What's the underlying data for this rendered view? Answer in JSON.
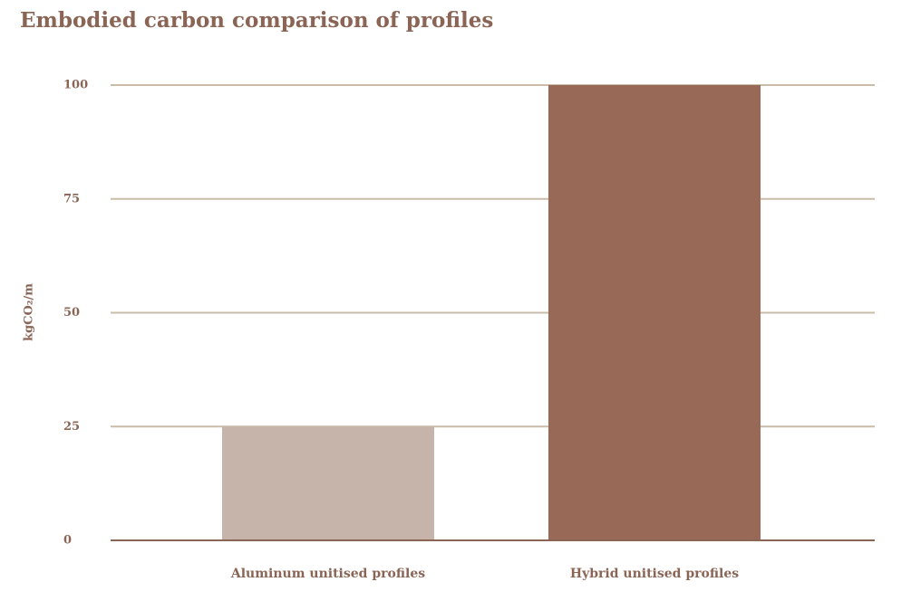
{
  "chart_data": {
    "type": "bar",
    "title": "Embodied carbon comparison of profiles",
    "y_label": "kgCO₂/m",
    "categories": [
      "Aluminum unitised profiles",
      "Hybrid unitised profiles"
    ],
    "values": [
      25,
      100
    ],
    "colors": [
      "#c6b4aa",
      "#976956"
    ],
    "ylim": [
      0,
      100
    ],
    "yticks": [
      0,
      25,
      50,
      75,
      100
    ],
    "grid": true
  }
}
